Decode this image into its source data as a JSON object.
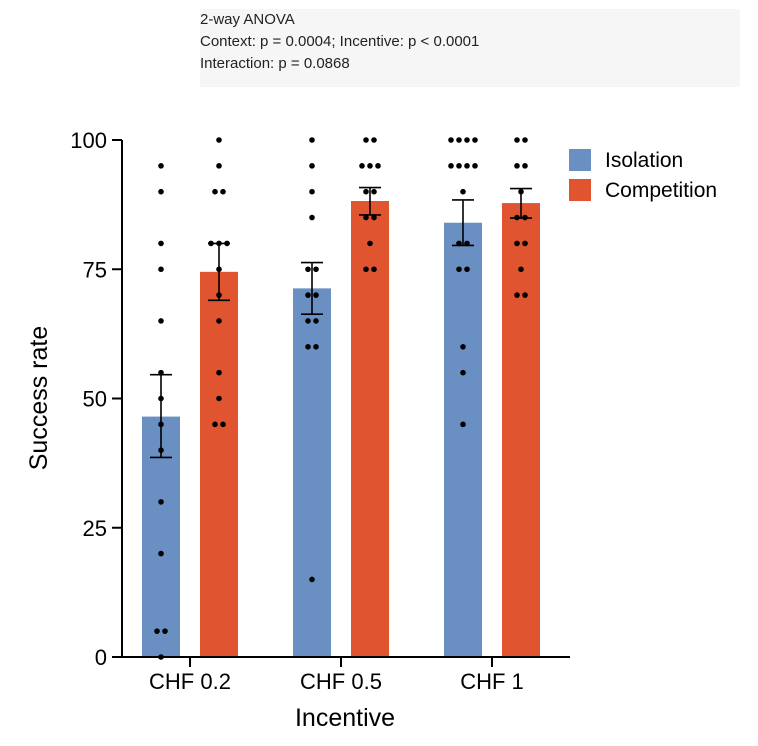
{
  "annotation": {
    "line1": "2-way ANOVA",
    "line2": "Context: p = 0.0004; Incentive: p < 0.0001",
    "line3": "Interaction: p = 0.0868"
  },
  "chart_data": {
    "type": "bar",
    "title": "",
    "xlabel": "Incentive",
    "ylabel": "Success rate",
    "categories": [
      "CHF 0.2",
      "CHF 0.5",
      "CHF 1"
    ],
    "ylim": [
      0,
      100
    ],
    "yticks": [
      0,
      25,
      50,
      75,
      100
    ],
    "grid": false,
    "legend_position": "top-right",
    "series": [
      {
        "name": "Isolation",
        "color": "#6a8fc3",
        "values": [
          46.5,
          71.3,
          84.0
        ],
        "sem_low": [
          38.6,
          66.3,
          79.6
        ],
        "sem_high": [
          54.6,
          76.3,
          88.4
        ],
        "points": [
          [
            95,
            90,
            80,
            75,
            65,
            55,
            50,
            45,
            40,
            30,
            20,
            5,
            5,
            0
          ],
          [
            100,
            95,
            90,
            85,
            75,
            75,
            70,
            70,
            65,
            65,
            60,
            60,
            15
          ],
          [
            100,
            100,
            100,
            100,
            95,
            95,
            95,
            95,
            90,
            80,
            80,
            75,
            75,
            60,
            55,
            45
          ]
        ]
      },
      {
        "name": "Competition",
        "color": "#e05530",
        "values": [
          74.5,
          88.2,
          87.8
        ],
        "sem_low": [
          69.0,
          85.5,
          84.9
        ],
        "sem_high": [
          80.0,
          90.8,
          90.6
        ],
        "points": [
          [
            100,
            95,
            90,
            90,
            80,
            80,
            80,
            75,
            70,
            65,
            55,
            50,
            45,
            45
          ],
          [
            100,
            100,
            95,
            95,
            95,
            90,
            90,
            85,
            85,
            80,
            75,
            75
          ],
          [
            100,
            100,
            95,
            95,
            90,
            85,
            85,
            80,
            80,
            75,
            70,
            70
          ]
        ]
      }
    ]
  }
}
